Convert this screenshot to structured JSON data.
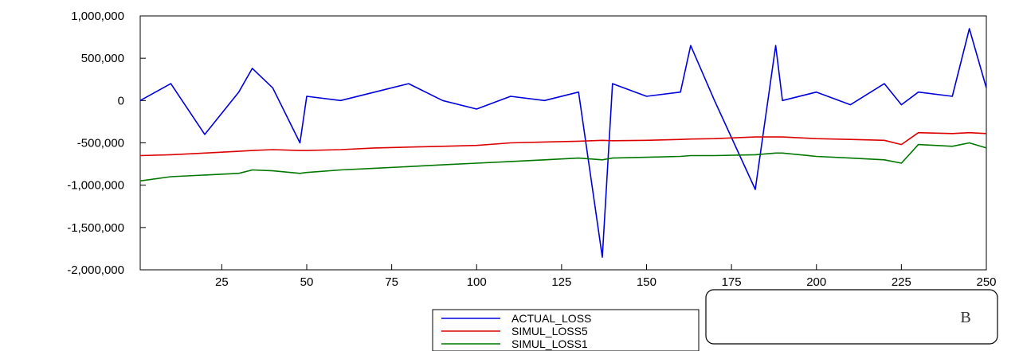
{
  "chart_data": {
    "type": "line",
    "title": "",
    "xlabel": "",
    "ylabel": "",
    "xlim": [
      1,
      250
    ],
    "ylim": [
      -2000000,
      1000000
    ],
    "x_ticks": [
      25,
      50,
      75,
      100,
      125,
      150,
      175,
      200,
      225,
      250
    ],
    "x_tick_labels": [
      "25",
      "50",
      "75",
      "100",
      "125",
      "150",
      "175",
      "200",
      "225",
      "250"
    ],
    "y_ticks": [
      1000000,
      500000,
      0,
      -500000,
      -1000000,
      -1500000,
      -2000000
    ],
    "y_tick_labels": [
      "1,000,000",
      "500,000",
      "0",
      "-500,000",
      "-1,000,000",
      "-1,500,000",
      "-2,000,000"
    ],
    "grid": false,
    "legend_position": "bottom-center",
    "x": [
      1,
      10,
      20,
      30,
      34,
      40,
      48,
      50,
      60,
      70,
      80,
      90,
      100,
      110,
      120,
      130,
      137,
      140,
      150,
      160,
      163,
      170,
      182,
      188,
      190,
      200,
      210,
      220,
      225,
      230,
      240,
      245,
      250
    ],
    "series": [
      {
        "name": "ACTUAL_LOSS",
        "color": "#0000dd",
        "values": [
          0,
          200000,
          -400000,
          100000,
          380000,
          150000,
          -500000,
          50000,
          0,
          100000,
          200000,
          0,
          -100000,
          50000,
          0,
          100000,
          -1850000,
          200000,
          50000,
          100000,
          650000,
          0,
          -1050000,
          650000,
          0,
          100000,
          -50000,
          200000,
          -50000,
          100000,
          50000,
          850000,
          150000
        ]
      },
      {
        "name": "SIMUL_LOSS5",
        "color": "#dd0000",
        "values": [
          -650000,
          -640000,
          -620000,
          -600000,
          -590000,
          -580000,
          -590000,
          -590000,
          -580000,
          -560000,
          -550000,
          -540000,
          -530000,
          -500000,
          -490000,
          -480000,
          -470000,
          -475000,
          -470000,
          -460000,
          -455000,
          -450000,
          -430000,
          -430000,
          -430000,
          -450000,
          -460000,
          -470000,
          -520000,
          -380000,
          -390000,
          -380000,
          -390000
        ]
      },
      {
        "name": "SIMUL_LOSS1",
        "color": "#007700",
        "values": [
          -950000,
          -900000,
          -880000,
          -860000,
          -820000,
          -830000,
          -860000,
          -850000,
          -820000,
          -800000,
          -780000,
          -760000,
          -740000,
          -720000,
          -700000,
          -680000,
          -700000,
          -680000,
          -670000,
          -660000,
          -650000,
          -650000,
          -640000,
          -620000,
          -620000,
          -660000,
          -680000,
          -700000,
          -740000,
          -520000,
          -540000,
          -500000,
          -560000
        ]
      }
    ]
  },
  "annotation_box": {
    "label": "B"
  }
}
